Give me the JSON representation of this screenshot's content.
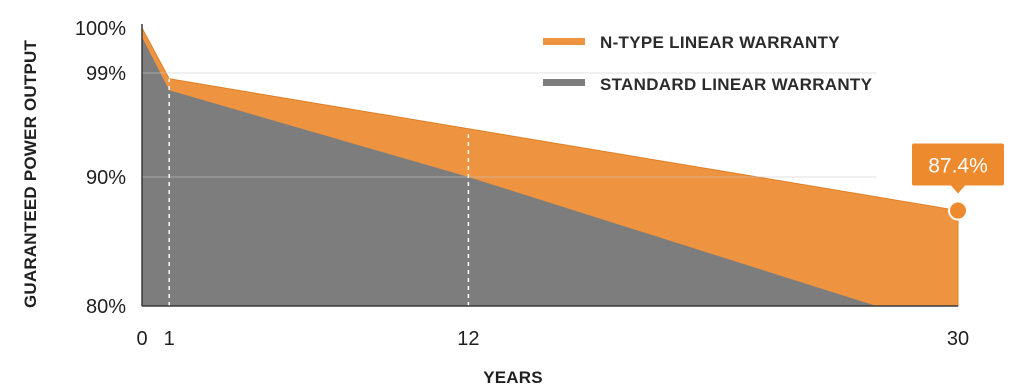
{
  "chart_data": {
    "type": "area",
    "title": "",
    "xlabel": "YEARS",
    "ylabel": "GUARANTEED POWER OUTPUT",
    "x_ticks": [
      {
        "value": 0,
        "label": "0"
      },
      {
        "value": 1,
        "label": "1"
      },
      {
        "value": 12,
        "label": "12"
      },
      {
        "value": 30,
        "label": "30"
      }
    ],
    "y_ticks": [
      {
        "value": 100,
        "label": "100%"
      },
      {
        "value": 99,
        "label": "99%"
      },
      {
        "value": 90,
        "label": "90%"
      },
      {
        "value": 80,
        "label": "80%"
      }
    ],
    "legend_position": "top-right",
    "series": [
      {
        "name": "N-TYPE LINEAR WARRANTY",
        "color": "#ee9440",
        "points": [
          [
            0,
            100
          ],
          [
            1,
            98.5
          ],
          [
            30,
            87.4
          ]
        ]
      },
      {
        "name": "STANDARD LINEAR WARRANTY",
        "color": "#7d7d7d",
        "points": [
          [
            0,
            99.8
          ],
          [
            1,
            97.5
          ],
          [
            12,
            90
          ],
          [
            27,
            80
          ]
        ]
      }
    ],
    "annotation": {
      "x": 30,
      "y": 87.4,
      "label": "87.4%",
      "color": "#ee8a2e"
    },
    "reference_lines_x": [
      1,
      12
    ]
  }
}
